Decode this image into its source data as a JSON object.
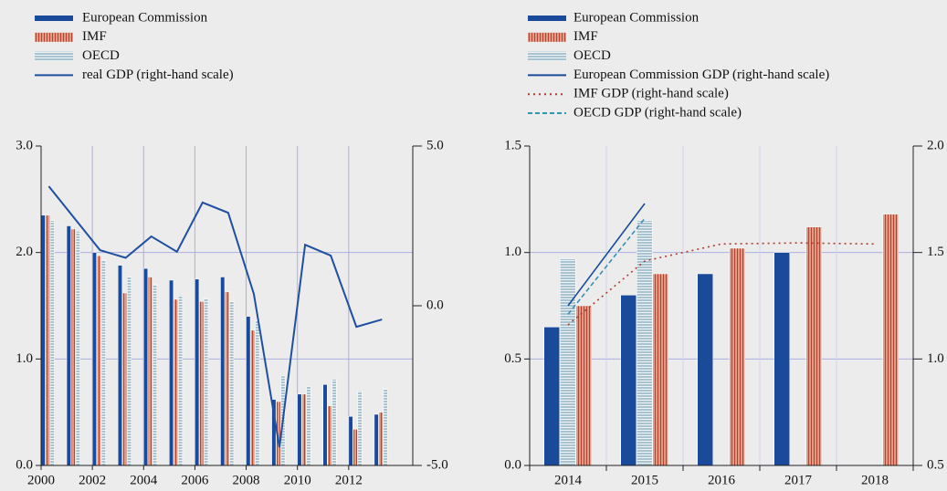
{
  "chart_data": [
    {
      "type": "bar",
      "x": [
        2000,
        2001,
        2002,
        2003,
        2004,
        2005,
        2006,
        2007,
        2008,
        2009,
        2010,
        2011,
        2012,
        2013
      ],
      "xlim": [
        2000,
        2014.5
      ],
      "xticks": [
        2000,
        2002,
        2004,
        2006,
        2008,
        2010,
        2012
      ],
      "ylim": [
        0,
        3
      ],
      "yticks": [
        {
          "value": 0,
          "label": "0.0"
        },
        {
          "value": 1,
          "label": "1.0"
        },
        {
          "value": 2,
          "label": "2.0"
        },
        {
          "value": 3,
          "label": "3.0"
        }
      ],
      "y2lim": [
        -5,
        5
      ],
      "y2ticks": [
        {
          "value": -5,
          "label": "-5.0"
        },
        {
          "value": 0,
          "label": "0.0"
        },
        {
          "value": 5,
          "label": "5.0"
        }
      ],
      "grid": true,
      "series": [
        {
          "name": "European Commission",
          "color": "#1a4a9a",
          "values": [
            2.35,
            2.25,
            2.0,
            1.88,
            1.85,
            1.74,
            1.75,
            1.77,
            1.4,
            0.62,
            0.67,
            0.76,
            0.46,
            0.48
          ]
        },
        {
          "name": "IMF",
          "color": "#e09a85",
          "hatch": "vertical",
          "values": [
            2.35,
            2.22,
            1.97,
            1.62,
            1.77,
            1.56,
            1.54,
            1.63,
            1.27,
            0.6,
            0.67,
            0.56,
            0.34,
            0.5
          ]
        },
        {
          "name": "OECD",
          "color": "#a8c3cf",
          "hatch": "horizontal",
          "values": [
            2.3,
            2.2,
            1.93,
            1.77,
            1.7,
            1.6,
            1.57,
            1.54,
            1.36,
            0.84,
            0.74,
            0.81,
            0.7,
            0.72
          ]
        },
        {
          "name": "real GDP (right-hand scale)",
          "type": "line",
          "axis": "y2",
          "color": "#1f4fa0",
          "style": "solid",
          "x": [
            2000.3,
            2001.3,
            2002.3,
            2003.3,
            2004.3,
            2005.3,
            2006.3,
            2007.3,
            2008.3,
            2009.3,
            2010.3,
            2011.3,
            2012.3,
            2013.3
          ],
          "values": [
            3.74,
            2.74,
            1.74,
            1.5,
            2.17,
            1.69,
            3.23,
            2.91,
            0.37,
            -4.43,
            1.91,
            1.57,
            -0.66,
            -0.43
          ]
        }
      ]
    },
    {
      "type": "bar",
      "categories": [
        "2014",
        "2015",
        "2016",
        "2017",
        "2018"
      ],
      "ylim": [
        0,
        1.5
      ],
      "yticks": [
        {
          "value": 0,
          "label": "0.0"
        },
        0.5,
        {
          "value": 1,
          "label": "1.0"
        },
        1.5
      ],
      "y2lim": [
        0.5,
        2
      ],
      "y2ticks": [
        0.5,
        {
          "value": 1,
          "label": "1.0"
        },
        1.5,
        {
          "value": 2,
          "label": "2.0"
        }
      ],
      "grid": true,
      "series": [
        {
          "name": "European Commission",
          "color": "#1a4a9a",
          "values": [
            0.65,
            0.8,
            0.9,
            1.0,
            null
          ]
        },
        {
          "name": "OECD",
          "color": "#a8c3cf",
          "hatch": "horizontal",
          "values": [
            0.97,
            1.15,
            null,
            null,
            null
          ]
        },
        {
          "name": "IMF",
          "color": "#e09a85",
          "hatch": "vertical",
          "values": [
            0.75,
            0.9,
            1.02,
            1.12,
            1.18
          ]
        },
        {
          "name": "European Commission GDP (right-hand scale)",
          "type": "line",
          "axis": "y2",
          "color": "#1a4a9a",
          "style": "solid",
          "values": [
            1.25,
            1.73,
            null,
            null,
            null
          ]
        },
        {
          "name": "IMF GDP (right-hand scale)",
          "type": "line",
          "axis": "y2",
          "color": "#b03a2e",
          "style": "dotted",
          "values": [
            1.16,
            1.46,
            1.54,
            1.545,
            1.54
          ]
        },
        {
          "name": "OECD GDP (right-hand scale)",
          "type": "line",
          "axis": "y2",
          "color": "#3a8fb5",
          "style": "dashed",
          "values": [
            1.21,
            1.66,
            null,
            null,
            null
          ]
        }
      ],
      "legend_order": [
        0,
        2,
        1,
        3,
        4,
        5
      ]
    }
  ]
}
